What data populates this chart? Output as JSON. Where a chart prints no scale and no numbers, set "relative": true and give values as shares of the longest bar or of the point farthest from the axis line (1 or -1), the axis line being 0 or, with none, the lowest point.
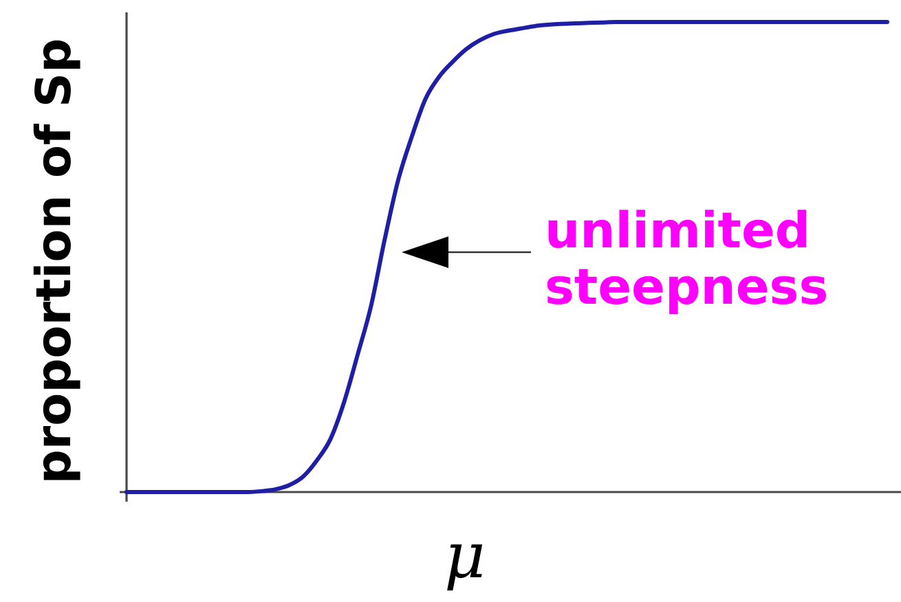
{
  "chart_data": {
    "type": "line",
    "xlabel": "μ",
    "ylabel": "proportion of Sp",
    "annotations": [
      "unlimited steepness"
    ],
    "relative": true,
    "marker": "none",
    "line_style": "solid",
    "categories": [
      null,
      null,
      null,
      null,
      null,
      null,
      null,
      null,
      null,
      null,
      null,
      null,
      null,
      null,
      null,
      null,
      null,
      null,
      null,
      null,
      null,
      null,
      null,
      null,
      null,
      null,
      null,
      null,
      null,
      null,
      null,
      null,
      null,
      null,
      null,
      null,
      null,
      null,
      null,
      null,
      null,
      null,
      null,
      null,
      null,
      null,
      null,
      null,
      null,
      null,
      null,
      null,
      null,
      null,
      null,
      null,
      null
    ],
    "series": [
      {
        "color": "#1f1fa5",
        "values": [
          0,
          0,
          0,
          0,
          0,
          0,
          0,
          0,
          0,
          0,
          0.002,
          0.006,
          0.015,
          0.033,
          0.067,
          0.112,
          0.19,
          0.291,
          0.396,
          0.537,
          0.664,
          0.756,
          0.836,
          0.883,
          0.915,
          0.942,
          0.961,
          0.974,
          0.981,
          0.986,
          0.991,
          0.994,
          0.996,
          0.997,
          0.998,
          0.999,
          1,
          1,
          1,
          1,
          1,
          1,
          1,
          1,
          1,
          1,
          1,
          1,
          1,
          1,
          1,
          1,
          1,
          1,
          1,
          1,
          1
        ]
      }
    ]
  }
}
